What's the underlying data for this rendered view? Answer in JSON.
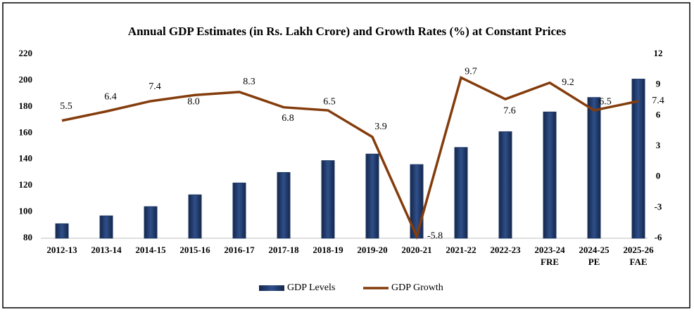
{
  "chart_data": {
    "type": "bar+line",
    "title": "Annual GDP Estimates (in Rs. Lakh Crore) and Growth Rates (%) at Constant Prices",
    "categories": [
      "2012-13",
      "2013-14",
      "2014-15",
      "2015-16",
      "2016-17",
      "2017-18",
      "2018-19",
      "2019-20",
      "2020-21",
      "2021-22",
      "2022-23",
      "2023-24\nFRE",
      "2024-25\nPE",
      "2025-26\nFAE"
    ],
    "series": [
      {
        "name": "GDP Levels",
        "type": "bar",
        "color": "#1f3864",
        "values": [
          91,
          97,
          104,
          113,
          122,
          130,
          139,
          144,
          136,
          149,
          161,
          176,
          187,
          201
        ]
      },
      {
        "name": "GDP Growth",
        "type": "line",
        "axis": "y2",
        "color": "#843c0c",
        "values": [
          5.5,
          6.4,
          7.4,
          8.0,
          8.3,
          6.8,
          6.5,
          3.9,
          -5.8,
          9.7,
          7.6,
          9.2,
          6.5,
          7.4
        ],
        "value_labels": [
          "5.5",
          "6.4",
          "7.4",
          "8.0",
          "8.3",
          "6.8",
          "6.5",
          "3.9",
          "-5.8",
          "9.7",
          "7.6",
          "9.2",
          "6.5",
          "7.4"
        ]
      }
    ],
    "ylim": [
      80,
      220
    ],
    "yticks": [
      80,
      100,
      120,
      140,
      160,
      180,
      200,
      220
    ],
    "y2lim": [
      -6,
      12
    ],
    "y2ticks": [
      -6,
      -3,
      0,
      3,
      6,
      9,
      12
    ],
    "grid": false,
    "legend": "bottom"
  }
}
